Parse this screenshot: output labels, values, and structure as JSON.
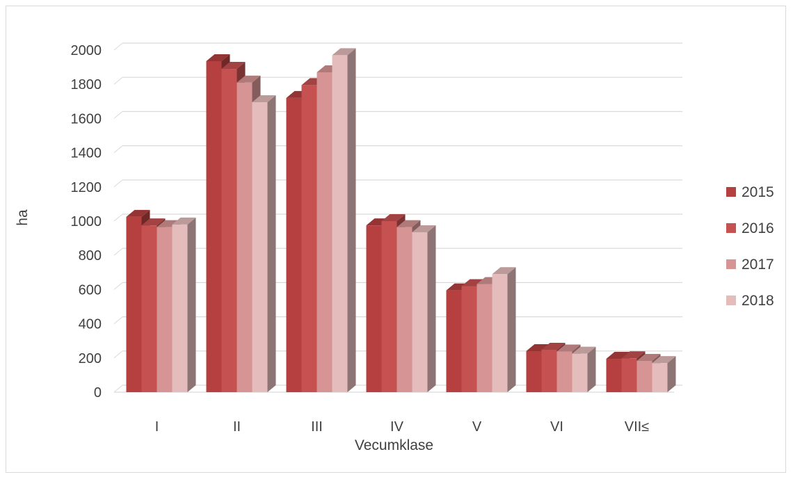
{
  "chart_data": {
    "type": "bar",
    "style": "3d-clustered-column",
    "title": "",
    "xlabel": "Vecumklase",
    "ylabel": "ha",
    "ylim": [
      0,
      2000
    ],
    "yticks": [
      0,
      200,
      400,
      600,
      800,
      1000,
      1200,
      1400,
      1600,
      1800,
      2000
    ],
    "grid": true,
    "legend": "right",
    "categories": [
      "I",
      "II",
      "III",
      "IV",
      "V",
      "VI",
      "VII≤"
    ],
    "series": [
      {
        "name": "2015",
        "color": "#b5403f",
        "values": [
          1025,
          1935,
          1720,
          975,
          595,
          240,
          195
        ]
      },
      {
        "name": "2016",
        "color": "#c55150",
        "values": [
          975,
          1890,
          1795,
          1000,
          620,
          248,
          198
        ]
      },
      {
        "name": "2017",
        "color": "#d69594",
        "values": [
          965,
          1810,
          1870,
          965,
          632,
          238,
          183
        ]
      },
      {
        "name": "2018",
        "color": "#e5bcbc",
        "values": [
          980,
          1695,
          1970,
          935,
          690,
          225,
          170
        ]
      }
    ]
  }
}
